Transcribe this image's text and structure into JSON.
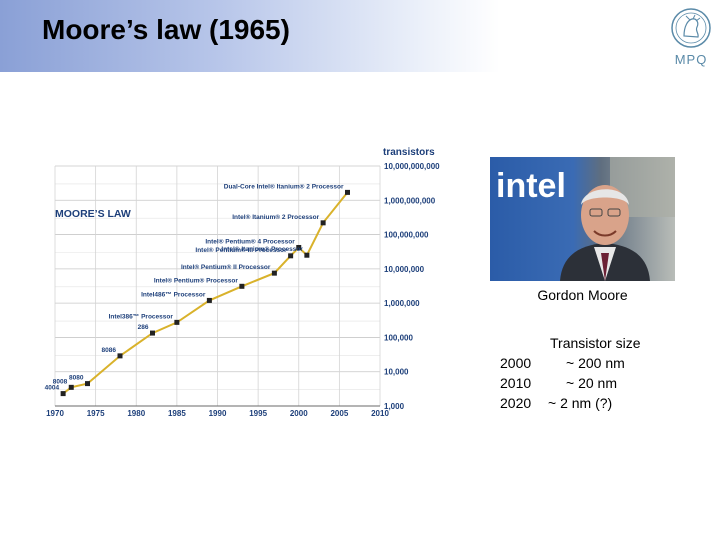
{
  "slide": {
    "title": "Moore’s law (1965)"
  },
  "logo": {
    "text": "MPQ"
  },
  "chart_data": {
    "type": "line",
    "title": "MOORE’S LAW",
    "ylabel": "transistors",
    "xlabel": "",
    "yscale": "log",
    "xlim": [
      1970,
      2010
    ],
    "ylim": [
      1000,
      10000000000
    ],
    "x_ticks": [
      "1970",
      "1975",
      "1980",
      "1985",
      "1990",
      "1995",
      "2000",
      "2005",
      "2010"
    ],
    "y_ticks": [
      {
        "value": 1000,
        "label": "1,000"
      },
      {
        "value": 10000,
        "label": "10,000"
      },
      {
        "value": 100000,
        "label": "100,000"
      },
      {
        "value": 1000000,
        "label": "1,000,000"
      },
      {
        "value": 10000000,
        "label": "10,000,000"
      },
      {
        "value": 100000000,
        "label": "100,000,000"
      },
      {
        "value": 1000000000,
        "label": "1,000,000,000"
      },
      {
        "value": 10000000000,
        "label": "10,000,000,000"
      }
    ],
    "grid": true,
    "line_color": "#d9b22b",
    "marker_color": "#222222",
    "points": [
      {
        "x": 1971,
        "y": 2300,
        "label": "4004"
      },
      {
        "x": 1972,
        "y": 3500,
        "label": "8008"
      },
      {
        "x": 1974,
        "y": 4500,
        "label": "8080"
      },
      {
        "x": 1978,
        "y": 29000,
        "label": "8086"
      },
      {
        "x": 1982,
        "y": 134000,
        "label": "286"
      },
      {
        "x": 1985,
        "y": 275000,
        "label": "Intel386™ Processor"
      },
      {
        "x": 1989,
        "y": 1200000,
        "label": "Intel486™ Processor"
      },
      {
        "x": 1993,
        "y": 3100000,
        "label": "Intel® Pentium® Processor"
      },
      {
        "x": 1997,
        "y": 7500000,
        "label": "Intel® Pentium® II Processor"
      },
      {
        "x": 1999,
        "y": 24000000,
        "label": "Intel® Pentium® III Processor"
      },
      {
        "x": 2000,
        "y": 42000000,
        "label": "Intel® Pentium® 4 Processor"
      },
      {
        "x": 2001,
        "y": 25000000,
        "label": "Intel® Itanium® Processor"
      },
      {
        "x": 2003,
        "y": 220000000,
        "label": "Intel® Itanium® 2 Processor"
      },
      {
        "x": 2006,
        "y": 1700000000,
        "label": "Dual-Core Intel® Itanium® 2 Processor"
      }
    ]
  },
  "photo": {
    "brand": "intel",
    "caption": "Gordon Moore"
  },
  "transistor_size": {
    "heading": "Transistor size",
    "rows": [
      {
        "year": "2000",
        "value": "~ 200 nm"
      },
      {
        "year": "2010",
        "value": "~ 20 nm"
      },
      {
        "year": "2020",
        "value": "~ 2 nm (?)"
      }
    ]
  }
}
